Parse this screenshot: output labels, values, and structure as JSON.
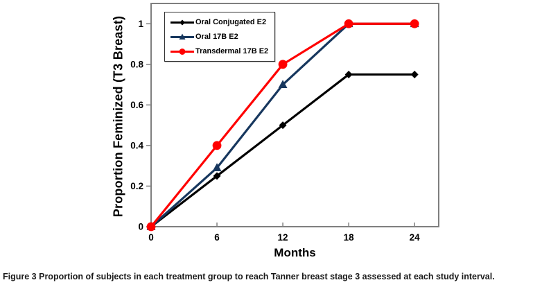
{
  "figure": {
    "caption_label": "Figure 3",
    "caption_text": "Proportion of subjects in each treatment group to reach Tanner breast stage 3 assessed at each study interval."
  },
  "chart_data": {
    "type": "line",
    "title": "",
    "xlabel": "Months",
    "ylabel": "Proportion Feminized (T3 Breast)",
    "x": [
      0,
      6,
      12,
      18,
      24
    ],
    "xtick_labels": [
      "0",
      "6",
      "12",
      "18",
      "24"
    ],
    "yticks": [
      0,
      0.2,
      0.4,
      0.6,
      0.8,
      1
    ],
    "ytick_labels": [
      "0",
      "0.2",
      "0.4",
      "0.6",
      "0.8",
      "1"
    ],
    "xlim": [
      0,
      26.2
    ],
    "ylim": [
      0,
      1.1
    ],
    "grid": false,
    "legend_position": "top-left-inside",
    "series": [
      {
        "name": "Oral Conjugated E2",
        "color": "#000000",
        "marker": "diamond",
        "values": [
          0,
          0.25,
          0.5,
          0.75,
          0.75
        ]
      },
      {
        "name": "Oral 17B E2",
        "color": "#17375E",
        "marker": "triangle",
        "values": [
          0,
          0.29,
          0.7,
          1,
          1
        ]
      },
      {
        "name": "Transdermal 17B E2",
        "color": "#FF0000",
        "marker": "circle",
        "values": [
          0,
          0.4,
          0.8,
          1,
          1
        ]
      }
    ],
    "colors": {
      "axis": "#7f7f7f",
      "tick": "#7f7f7f",
      "tick_label": "#000000"
    }
  }
}
